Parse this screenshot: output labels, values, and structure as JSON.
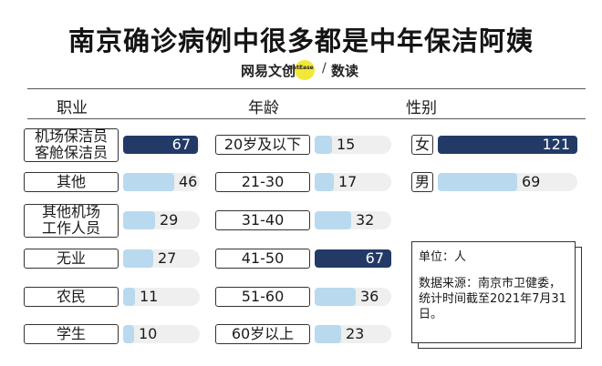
{
  "title": "南京确诊病例中很多都是中年保洁阿姨",
  "brand": {
    "left": "网易文创",
    "netease": "NetEase",
    "right": "数读"
  },
  "note": {
    "unit": "单位：人",
    "source": "数据来源：南京市卫健委，统计时间截至2021年7月31日。"
  },
  "colors": {
    "light": "#b9d9ef",
    "dark": "#243a66",
    "track": "#efefef"
  },
  "chart_data": [
    {
      "type": "bar",
      "title": "职业",
      "categories": [
        "机场保洁员\n客舱保洁员",
        "其他",
        "其他机场\n工作人员",
        "无业",
        "农民",
        "学生"
      ],
      "values": [
        67,
        46,
        29,
        27,
        11,
        10
      ],
      "highlight": [
        true,
        false,
        false,
        false,
        false,
        false
      ],
      "xlim": [
        0,
        67
      ]
    },
    {
      "type": "bar",
      "title": "年龄",
      "categories": [
        "20岁及以下",
        "21-30",
        "31-40",
        "41-50",
        "51-60",
        "60岁以上"
      ],
      "values": [
        15,
        17,
        32,
        67,
        36,
        23
      ],
      "highlight": [
        false,
        false,
        false,
        true,
        false,
        false
      ],
      "xlim": [
        0,
        67
      ]
    },
    {
      "type": "bar",
      "title": "性别",
      "categories": [
        "女",
        "男"
      ],
      "values": [
        121,
        69
      ],
      "highlight": [
        true,
        false
      ],
      "xlim": [
        0,
        121
      ]
    }
  ]
}
